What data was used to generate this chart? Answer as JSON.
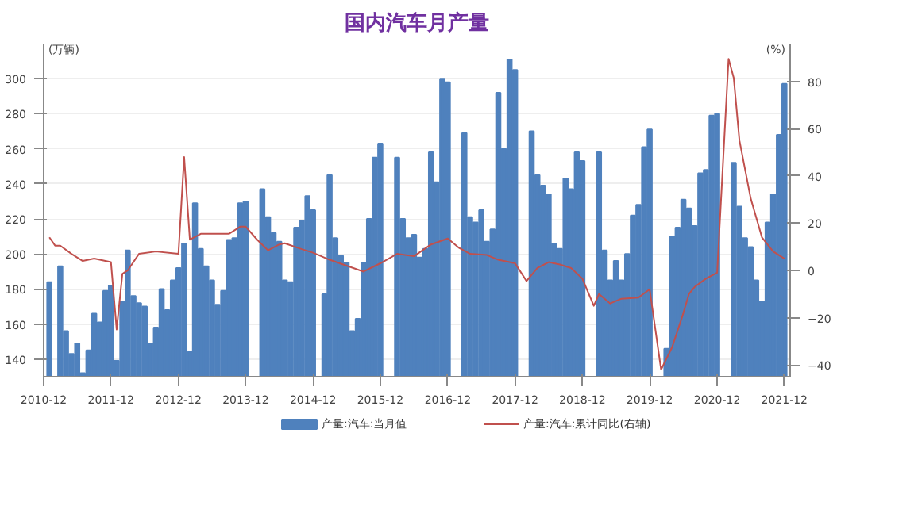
{
  "chart_data": {
    "type": "bar",
    "title": "国内汽车月产量",
    "ylabel": "(万辆)",
    "y2label": "(%)",
    "x": [
      "2011-01",
      "2011-02",
      "2011-03",
      "2011-04",
      "2011-05",
      "2011-06",
      "2011-07",
      "2011-08",
      "2011-09",
      "2011-10",
      "2011-11",
      "2011-12",
      "2012-01",
      "2012-02",
      "2012-03",
      "2012-04",
      "2012-05",
      "2012-06",
      "2012-07",
      "2012-08",
      "2012-09",
      "2012-10",
      "2012-11",
      "2012-12",
      "2013-01",
      "2013-02",
      "2013-03",
      "2013-04",
      "2013-05",
      "2013-06",
      "2013-07",
      "2013-08",
      "2013-09",
      "2013-10",
      "2013-11",
      "2013-12",
      "2014-01",
      "2014-02",
      "2014-03",
      "2014-04",
      "2014-05",
      "2014-06",
      "2014-07",
      "2014-08",
      "2014-09",
      "2014-10",
      "2014-11",
      "2014-12",
      "2015-01",
      "2015-02",
      "2015-03",
      "2015-04",
      "2015-05",
      "2015-06",
      "2015-07",
      "2015-08",
      "2015-09",
      "2015-10",
      "2015-11",
      "2015-12",
      "2016-01",
      "2016-02",
      "2016-03",
      "2016-04",
      "2016-05",
      "2016-06",
      "2016-07",
      "2016-08",
      "2016-09",
      "2016-10",
      "2016-11",
      "2016-12",
      "2017-01",
      "2017-02",
      "2017-03",
      "2017-04",
      "2017-05",
      "2017-06",
      "2017-07",
      "2017-08",
      "2017-09",
      "2017-10",
      "2017-11",
      "2017-12",
      "2018-01",
      "2018-02",
      "2018-03",
      "2018-04",
      "2018-05",
      "2018-06",
      "2018-07",
      "2018-08",
      "2018-09",
      "2018-10",
      "2018-11",
      "2018-12",
      "2019-01",
      "2019-02",
      "2019-03",
      "2019-04",
      "2019-05",
      "2019-06",
      "2019-07",
      "2019-08",
      "2019-09",
      "2019-10",
      "2019-11",
      "2019-12",
      "2020-01",
      "2020-02",
      "2020-03",
      "2020-04",
      "2020-05",
      "2020-06",
      "2020-07",
      "2020-08",
      "2020-09",
      "2020-10",
      "2020-11",
      "2020-12",
      "2021-01",
      "2021-02",
      "2021-03",
      "2021-04",
      "2021-05",
      "2021-06",
      "2021-07",
      "2021-08",
      "2021-09",
      "2021-10",
      "2021-11",
      "2021-12"
    ],
    "xlim": [
      "2010-12",
      "2022-01"
    ],
    "xticks": [
      "2010-12",
      "2011-12",
      "2012-12",
      "2013-12",
      "2014-12",
      "2015-12",
      "2016-12",
      "2017-12",
      "2018-12",
      "2019-12",
      "2020-12",
      "2021-12"
    ],
    "ylim": [
      130,
      320
    ],
    "yticks": [
      140,
      160,
      180,
      200,
      220,
      240,
      260,
      280,
      300
    ],
    "y2lim": [
      -45,
      96
    ],
    "y2ticks": [
      -40,
      -20,
      0,
      20,
      40,
      60,
      80
    ],
    "grid": "y",
    "legend": "bottom",
    "series": [
      {
        "name": "产量:汽车:当月值",
        "color": "#4f81bd",
        "values": [
          184,
          null,
          193,
          156,
          143,
          149,
          132,
          145,
          166,
          161,
          179,
          182,
          139,
          173,
          202,
          176,
          172,
          170,
          149,
          158,
          180,
          168,
          185,
          192,
          206,
          144,
          229,
          203,
          193,
          185,
          171,
          179,
          208,
          209,
          229,
          230,
          null,
          null,
          237,
          221,
          212,
          207,
          185,
          184,
          215,
          219,
          233,
          225,
          null,
          177,
          245,
          209,
          199,
          195,
          156,
          163,
          195,
          220,
          255,
          263,
          null,
          null,
          255,
          220,
          209,
          211,
          198,
          203,
          258,
          241,
          300,
          298,
          null,
          null,
          269,
          221,
          218,
          225,
          207,
          214,
          292,
          260,
          311,
          305,
          null,
          null,
          270,
          245,
          239,
          234,
          206,
          203,
          243,
          237,
          258,
          253,
          null,
          null,
          258,
          202,
          185,
          196,
          185,
          200,
          222,
          228,
          261,
          271,
          null,
          null,
          146,
          210,
          215,
          231,
          226,
          216,
          246,
          248,
          279,
          280,
          null,
          null,
          252,
          227,
          209,
          204,
          185,
          173,
          218,
          234,
          268,
          297
        ]
      },
      {
        "name": "产量:汽车:累计同比(右轴)",
        "type": "line",
        "axis": "y2",
        "color": "#c0504d",
        "x": [
          "2011-01",
          "2011-02",
          "2011-03",
          "2011-05",
          "2011-07",
          "2011-09",
          "2011-12",
          "2012-01",
          "2012-02",
          "2012-03",
          "2012-05",
          "2012-08",
          "2012-12",
          "2013-01",
          "2013-02",
          "2013-04",
          "2013-09",
          "2013-11",
          "2013-12",
          "2014-02",
          "2014-04",
          "2014-06",
          "2014-07",
          "2014-10",
          "2014-12",
          "2015-03",
          "2015-06",
          "2015-09",
          "2015-12",
          "2016-03",
          "2016-06",
          "2016-09",
          "2016-12",
          "2017-02",
          "2017-04",
          "2017-07",
          "2017-09",
          "2017-12",
          "2018-02",
          "2018-04",
          "2018-06",
          "2018-08",
          "2018-10",
          "2018-12",
          "2019-02",
          "2019-03",
          "2019-05",
          "2019-07",
          "2019-10",
          "2019-12",
          "2020-02",
          "2020-04",
          "2020-06",
          "2020-07",
          "2020-08",
          "2020-10",
          "2020-12",
          "2021-02",
          "2021-03",
          "2021-04",
          "2021-06",
          "2021-08",
          "2021-10",
          "2021-12"
        ],
        "values": [
          14,
          10.5,
          10.5,
          7,
          4,
          5,
          3.5,
          -25,
          -1.5,
          0,
          7,
          8,
          7,
          48,
          13,
          15.5,
          15.5,
          18.5,
          18.5,
          13,
          8.5,
          11,
          11.5,
          9,
          7.5,
          4.5,
          2,
          -0.5,
          3,
          7,
          6,
          11,
          13.5,
          9.5,
          7,
          6.5,
          4.5,
          3,
          -4.5,
          1,
          3.5,
          2.5,
          1,
          -3.5,
          -15,
          -10,
          -14,
          -12,
          -11.5,
          -8,
          -42,
          -32.5,
          -18,
          -10,
          -7,
          -3.5,
          -1,
          89.5,
          81.5,
          55,
          30.5,
          14,
          8,
          5
        ]
      }
    ]
  }
}
